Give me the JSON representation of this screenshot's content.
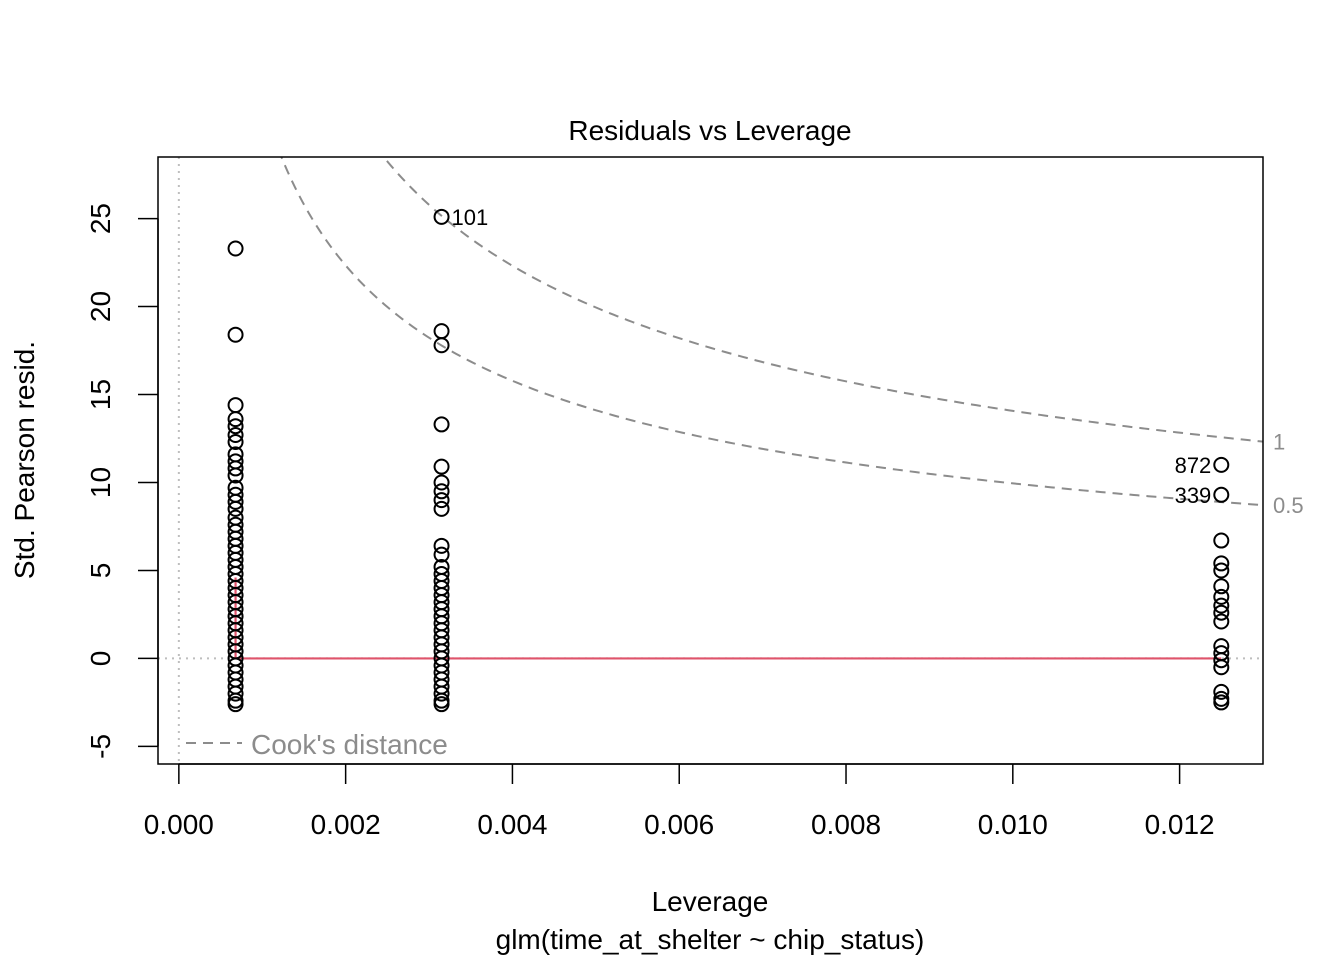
{
  "chart_data": {
    "type": "scatter",
    "title": "Residuals vs Leverage",
    "xlabel": "Leverage",
    "sublabel": "glm(time_at_shelter ~ chip_status)",
    "ylabel": "Std. Pearson resid.",
    "xlim": [
      -0.00025,
      0.013
    ],
    "ylim": [
      -6,
      28.5
    ],
    "x_ticks": [
      0.0,
      0.002,
      0.004,
      0.006,
      0.008,
      0.01,
      0.012
    ],
    "x_tick_labels": [
      "0.000",
      "0.002",
      "0.004",
      "0.006",
      "0.008",
      "0.010",
      "0.012"
    ],
    "y_ticks": [
      -5,
      0,
      5,
      10,
      15,
      20,
      25
    ],
    "y_tick_labels": [
      "-5",
      "0",
      "5",
      "10",
      "15",
      "20",
      "25"
    ],
    "reference_lines": {
      "x": 0,
      "y": 0
    },
    "cooks_distance": {
      "legend": "Cook's distance",
      "levels": [
        {
          "level": 1,
          "label": "1"
        },
        {
          "level": 0.5,
          "label": "0.5"
        }
      ],
      "n_parameters": 2
    },
    "point_groups": [
      {
        "leverage": 0.00068,
        "residuals": [
          23.3,
          18.4,
          14.4,
          13.6,
          13.2,
          12.7,
          12.3,
          11.6,
          11.2,
          10.8,
          10.4,
          9.7,
          9.3,
          8.9,
          8.5,
          8.0,
          7.6,
          7.2,
          6.8,
          6.4,
          6.0,
          5.6,
          5.2,
          4.8,
          4.4,
          4.0,
          3.6,
          3.2,
          2.8,
          2.4,
          2.0,
          1.6,
          1.2,
          0.8,
          0.4,
          0.0,
          -0.4,
          -0.8,
          -1.2,
          -1.6,
          -2.0,
          -2.4,
          -2.6
        ]
      },
      {
        "leverage": 0.00315,
        "residuals": [
          25.1,
          18.6,
          17.8,
          13.3,
          10.9,
          10.0,
          9.5,
          9.0,
          8.5,
          6.4,
          5.9,
          5.2,
          4.8,
          4.4,
          4.0,
          3.6,
          3.2,
          2.8,
          2.4,
          2.0,
          1.6,
          1.2,
          0.8,
          0.4,
          0.0,
          -0.4,
          -0.8,
          -1.2,
          -1.6,
          -2.0,
          -2.4,
          -2.6
        ]
      },
      {
        "leverage": 0.0125,
        "residuals": [
          11.0,
          9.3,
          6.7,
          5.4,
          5.0,
          4.1,
          3.5,
          3.0,
          2.6,
          2.1,
          0.7,
          0.3,
          -0.1,
          -0.5,
          -1.9,
          -2.3,
          -2.5
        ]
      }
    ],
    "labeled_points": [
      {
        "label": "101",
        "leverage": 0.00315,
        "residual": 25.1,
        "side": "right"
      },
      {
        "label": "872",
        "leverage": 0.0125,
        "residual": 11.0,
        "side": "left"
      },
      {
        "label": "339",
        "leverage": 0.0125,
        "residual": 9.3,
        "side": "left"
      }
    ],
    "smoother": {
      "color": "#DF536B",
      "x": [
        0.00068,
        0.00068,
        0.00315,
        0.0125
      ],
      "y": [
        4.6,
        0.0,
        0.0,
        0.0
      ]
    },
    "colors": {
      "points": "#000000",
      "cooks_lines": "#8c8c8c",
      "reference_lines": "#bebebe",
      "legend_text": "#8c8c8c"
    }
  }
}
